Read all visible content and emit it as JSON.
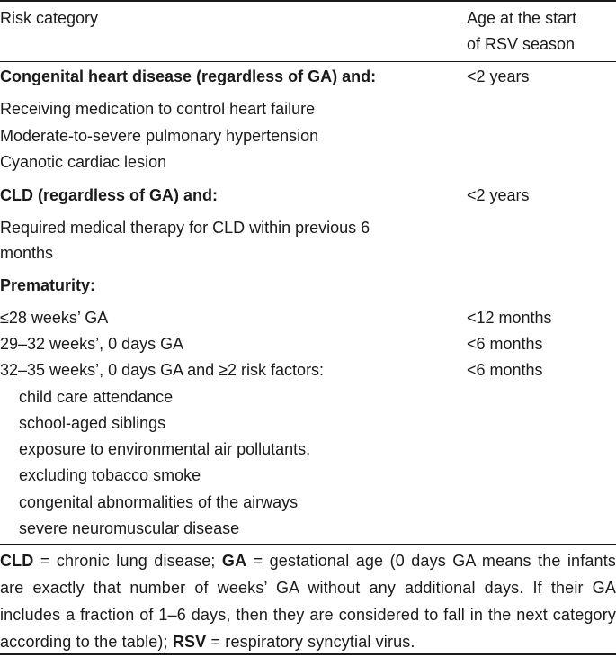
{
  "header": {
    "col1": "Risk category",
    "col2_line1": "Age at the",
    "col2_line2": "start",
    "col2_line3": "of RSV season"
  },
  "groups": {
    "chd": {
      "title": "Congenital heart disease (regardless of GA) and:",
      "age": "<2 years",
      "items": [
        "Receiving medication to control heart failure",
        "Moderate-to-severe pulmonary hypertension",
        "Cyanotic cardiac lesion"
      ]
    },
    "cld": {
      "title": "CLD (regardless of GA) and:",
      "age": "<2 years",
      "items": [
        "Required medical therapy for CLD within previous 6",
        "months"
      ]
    },
    "prem": {
      "title": "Prematurity:",
      "rows": [
        {
          "label": "≤28 weeks’ GA",
          "age": "<12 months"
        },
        {
          "label": "29–32 weeks’, 0 days GA",
          "age": "<6 months"
        },
        {
          "label": "32–35 weeks’, 0 days GA and ≥2 risk factors:",
          "age": "<6 months"
        }
      ],
      "risk_factors": [
        "child care attendance",
        "school-aged siblings",
        "exposure to environmental air pollutants,",
        "excluding tobacco smoke",
        "congenital abnormalities of the airways",
        "severe neuromuscular disease"
      ]
    }
  },
  "footnote": {
    "abbr1": "CLD",
    "def1": " = chronic lung disease; ",
    "abbr2": "GA",
    "def2": " = gestational age (0 days GA means the infants are exactly that number of weeks’ GA without any additional days. If their GA includes a fraction of 1–6 days, then they are considered to fall in the next category according to the table); ",
    "abbr3": "RSV",
    "def3": " = respiratory syncytial virus."
  }
}
